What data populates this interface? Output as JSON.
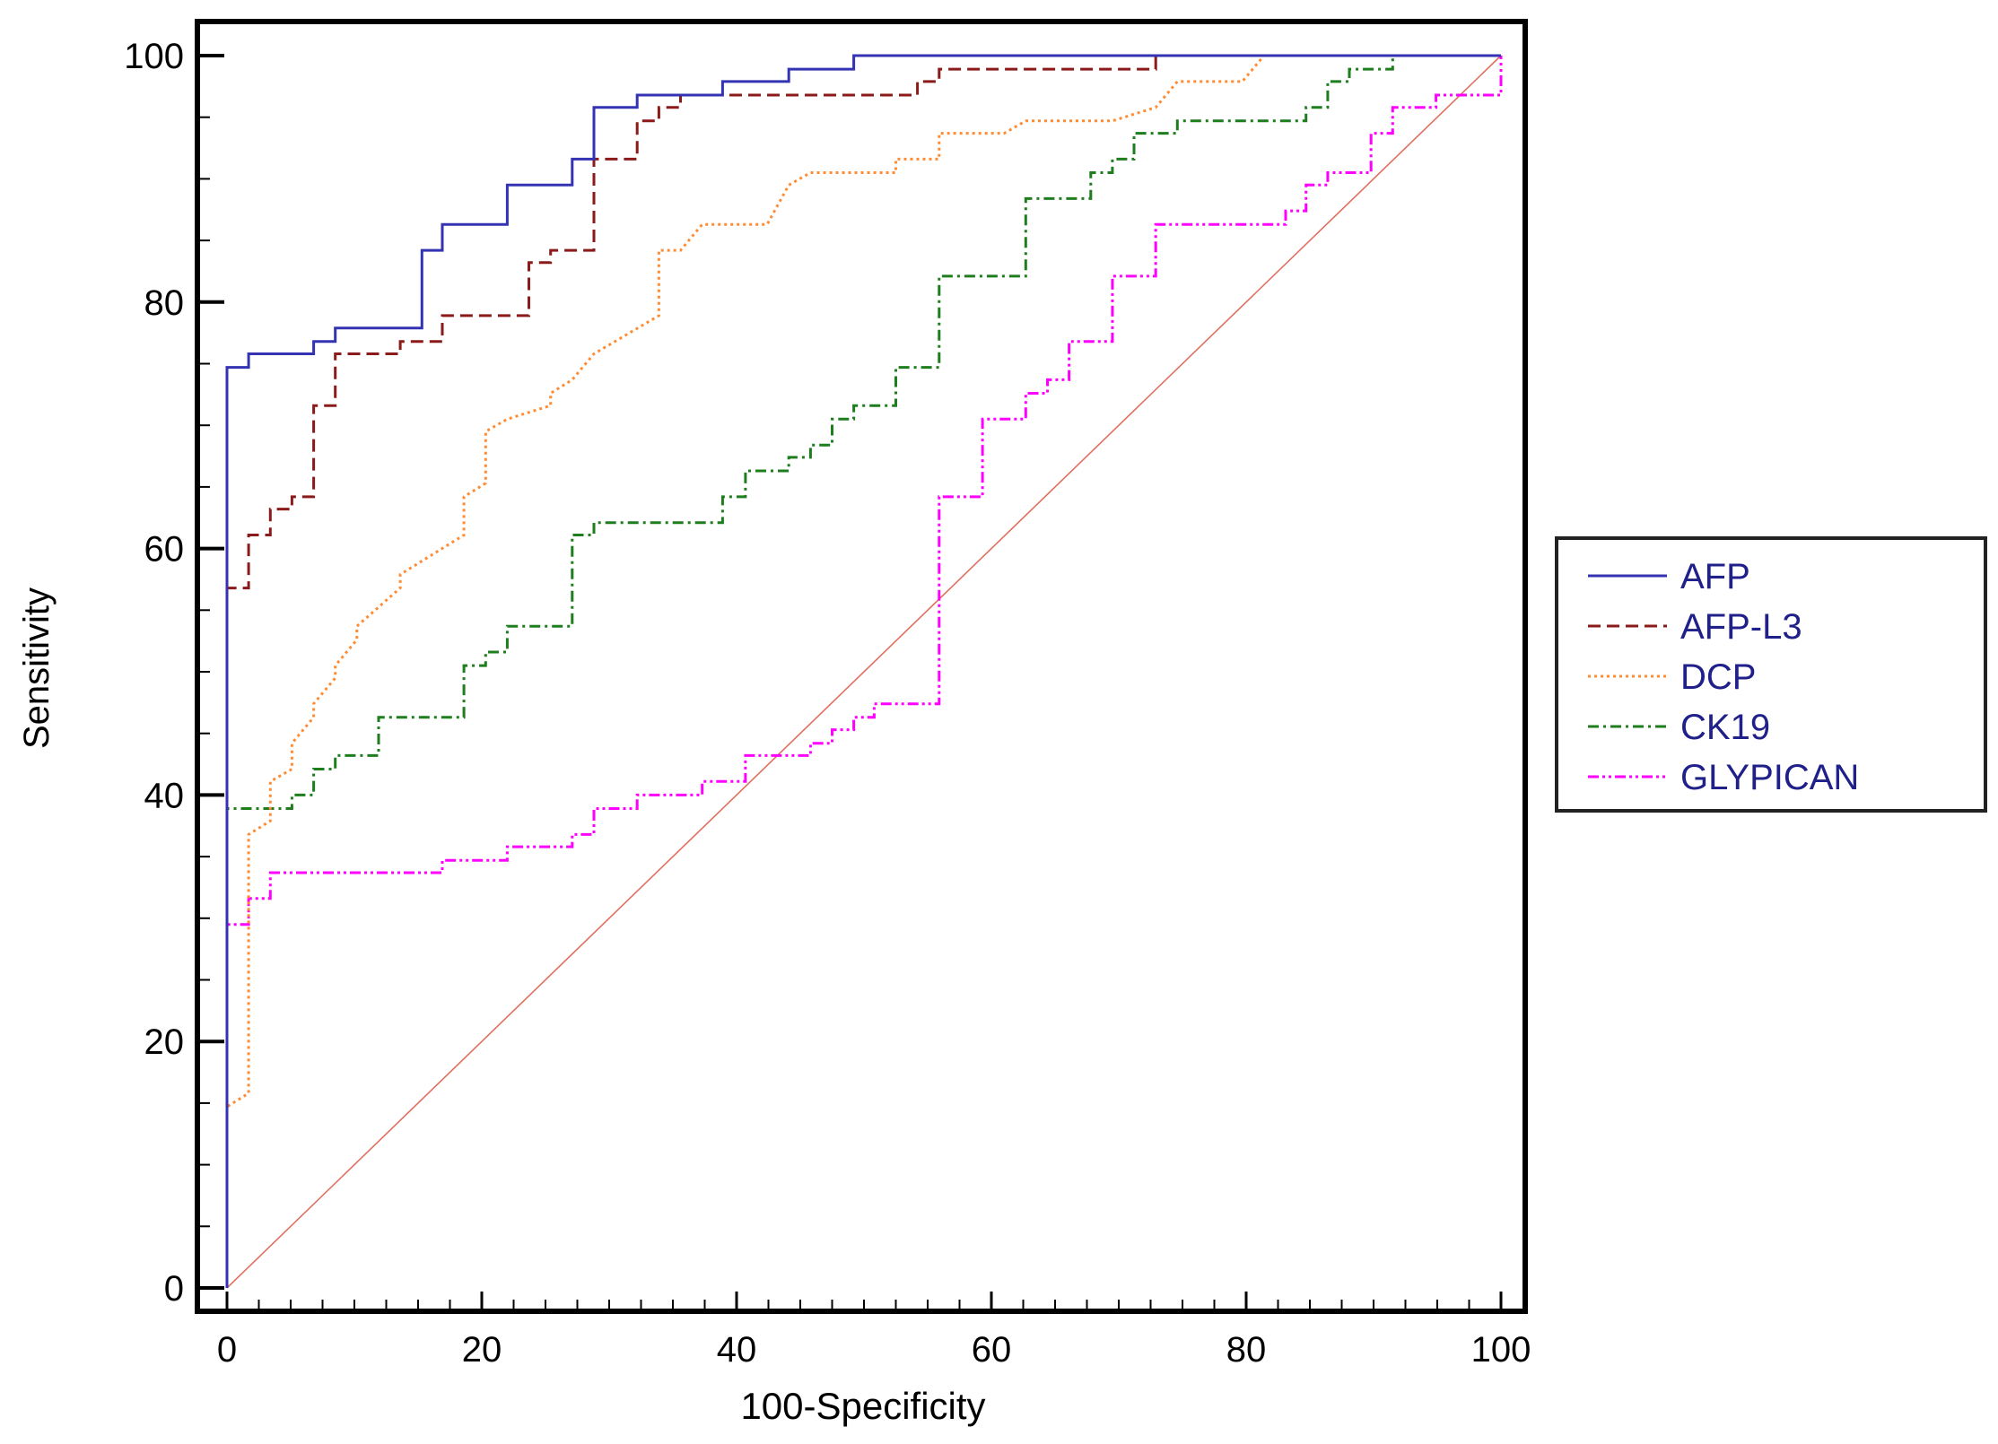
{
  "chart_data": {
    "type": "line",
    "title": "",
    "xlabel": "100-Specificity",
    "ylabel": "Sensitivity",
    "xlim": [
      0,
      100
    ],
    "ylim": [
      0,
      100
    ],
    "xticks": [
      0,
      20,
      40,
      60,
      80,
      100
    ],
    "yticks": [
      0,
      20,
      40,
      60,
      80,
      100
    ],
    "x_minor_step": 2.5,
    "y_minor_step": 5,
    "grid": false,
    "legend_position": "right",
    "reference_line": {
      "name": "chance",
      "points": [
        [
          0,
          0
        ],
        [
          100,
          100
        ]
      ],
      "color": "#e07060"
    },
    "series": [
      {
        "name": "AFP",
        "color": "#3333b3",
        "dash": "solid",
        "points": [
          [
            0,
            0
          ],
          [
            0,
            74.7
          ],
          [
            1.7,
            74.7
          ],
          [
            1.7,
            75.8
          ],
          [
            6.8,
            75.8
          ],
          [
            6.8,
            76.8
          ],
          [
            8.5,
            76.8
          ],
          [
            8.5,
            77.9
          ],
          [
            15.3,
            77.9
          ],
          [
            15.3,
            84.2
          ],
          [
            16.9,
            84.2
          ],
          [
            16.9,
            86.3
          ],
          [
            22,
            86.3
          ],
          [
            22,
            89.5
          ],
          [
            27.1,
            89.5
          ],
          [
            27.1,
            91.6
          ],
          [
            28.8,
            91.6
          ],
          [
            28.8,
            95.8
          ],
          [
            32.2,
            95.8
          ],
          [
            32.2,
            96.8
          ],
          [
            38.9,
            96.8
          ],
          [
            38.9,
            97.9
          ],
          [
            44.1,
            97.9
          ],
          [
            44.1,
            98.9
          ],
          [
            49.2,
            98.9
          ],
          [
            49.2,
            100
          ],
          [
            100,
            100
          ]
        ]
      },
      {
        "name": "AFP-L3",
        "color": "#8b1a1a",
        "dash": "dashed",
        "points": [
          [
            0,
            0
          ],
          [
            0,
            56.8
          ],
          [
            1.7,
            56.8
          ],
          [
            1.7,
            61.1
          ],
          [
            3.4,
            61.1
          ],
          [
            3.4,
            63.2
          ],
          [
            5.1,
            63.2
          ],
          [
            5.1,
            64.2
          ],
          [
            6.8,
            64.2
          ],
          [
            6.8,
            71.6
          ],
          [
            8.5,
            71.6
          ],
          [
            8.5,
            75.8
          ],
          [
            13.6,
            75.8
          ],
          [
            13.6,
            76.8
          ],
          [
            16.9,
            76.8
          ],
          [
            16.9,
            78.9
          ],
          [
            23.7,
            78.9
          ],
          [
            23.7,
            83.2
          ],
          [
            25.4,
            83.2
          ],
          [
            25.4,
            84.2
          ],
          [
            28.8,
            84.2
          ],
          [
            28.8,
            91.6
          ],
          [
            32.2,
            91.6
          ],
          [
            32.2,
            94.7
          ],
          [
            33.9,
            94.7
          ],
          [
            33.9,
            95.8
          ],
          [
            35.6,
            95.8
          ],
          [
            35.6,
            96.8
          ],
          [
            54.2,
            96.8
          ],
          [
            54.2,
            97.9
          ],
          [
            55.9,
            97.9
          ],
          [
            55.9,
            98.9
          ],
          [
            72.9,
            98.9
          ],
          [
            72.9,
            100
          ],
          [
            100,
            100
          ]
        ]
      },
      {
        "name": "DCP",
        "color": "#ff8c33",
        "dash": "dotted",
        "points": [
          [
            0,
            0
          ],
          [
            0,
            14.7
          ],
          [
            1.7,
            15.8
          ],
          [
            1.7,
            36.8
          ],
          [
            3.4,
            37.9
          ],
          [
            3.4,
            41.1
          ],
          [
            5.1,
            42.1
          ],
          [
            5.1,
            44.2
          ],
          [
            6.8,
            46.3
          ],
          [
            6.8,
            47.4
          ],
          [
            8.5,
            49.5
          ],
          [
            8.5,
            50.5
          ],
          [
            10.2,
            52.6
          ],
          [
            10.2,
            53.7
          ],
          [
            13.6,
            56.8
          ],
          [
            13.6,
            57.9
          ],
          [
            18.6,
            61.1
          ],
          [
            18.6,
            64.2
          ],
          [
            20.3,
            65.3
          ],
          [
            20.3,
            69.5
          ],
          [
            22,
            70.5
          ],
          [
            25.4,
            71.6
          ],
          [
            25.4,
            72.6
          ],
          [
            27.1,
            73.7
          ],
          [
            28.8,
            75.8
          ],
          [
            33.9,
            78.9
          ],
          [
            33.9,
            84.2
          ],
          [
            35.6,
            84.2
          ],
          [
            37.3,
            86.3
          ],
          [
            42.4,
            86.3
          ],
          [
            44.1,
            89.5
          ],
          [
            45.8,
            90.5
          ],
          [
            52.5,
            90.5
          ],
          [
            52.5,
            91.6
          ],
          [
            55.9,
            91.6
          ],
          [
            55.9,
            93.7
          ],
          [
            61,
            93.7
          ],
          [
            62.7,
            94.7
          ],
          [
            69.5,
            94.7
          ],
          [
            72.9,
            95.8
          ],
          [
            74.6,
            97.9
          ],
          [
            79.7,
            97.9
          ],
          [
            81.4,
            100
          ],
          [
            100,
            100
          ]
        ]
      },
      {
        "name": "CK19",
        "color": "#1e7e1e",
        "dash": "dashdot",
        "points": [
          [
            0,
            0
          ],
          [
            0,
            38.9
          ],
          [
            5.1,
            38.9
          ],
          [
            5.1,
            40
          ],
          [
            6.8,
            40
          ],
          [
            6.8,
            42.1
          ],
          [
            8.5,
            42.1
          ],
          [
            8.5,
            43.2
          ],
          [
            11.9,
            43.2
          ],
          [
            11.9,
            46.3
          ],
          [
            18.6,
            46.3
          ],
          [
            18.6,
            50.5
          ],
          [
            20.3,
            50.5
          ],
          [
            20.3,
            51.6
          ],
          [
            22,
            51.6
          ],
          [
            22,
            53.7
          ],
          [
            27.1,
            53.7
          ],
          [
            27.1,
            61.1
          ],
          [
            28.8,
            61.1
          ],
          [
            28.8,
            62.1
          ],
          [
            38.9,
            62.1
          ],
          [
            38.9,
            64.2
          ],
          [
            40.7,
            64.2
          ],
          [
            40.7,
            66.3
          ],
          [
            44.1,
            66.3
          ],
          [
            44.1,
            67.4
          ],
          [
            45.8,
            67.4
          ],
          [
            45.8,
            68.4
          ],
          [
            47.5,
            68.4
          ],
          [
            47.5,
            70.5
          ],
          [
            49.2,
            70.5
          ],
          [
            49.2,
            71.6
          ],
          [
            52.5,
            71.6
          ],
          [
            52.5,
            74.7
          ],
          [
            55.9,
            74.7
          ],
          [
            55.9,
            82.1
          ],
          [
            62.7,
            82.1
          ],
          [
            62.7,
            88.4
          ],
          [
            67.8,
            88.4
          ],
          [
            67.8,
            90.5
          ],
          [
            69.5,
            90.5
          ],
          [
            69.5,
            91.6
          ],
          [
            71.2,
            91.6
          ],
          [
            71.2,
            93.7
          ],
          [
            74.6,
            93.7
          ],
          [
            74.6,
            94.7
          ],
          [
            84.7,
            94.7
          ],
          [
            84.7,
            95.8
          ],
          [
            86.4,
            95.8
          ],
          [
            86.4,
            97.9
          ],
          [
            88.1,
            97.9
          ],
          [
            88.1,
            98.9
          ],
          [
            91.5,
            98.9
          ],
          [
            91.5,
            100
          ],
          [
            100,
            100
          ]
        ]
      },
      {
        "name": "GLYPICAN",
        "color": "#ff00ff",
        "dash": "dashdotdot",
        "points": [
          [
            0,
            0
          ],
          [
            0,
            29.5
          ],
          [
            1.7,
            29.5
          ],
          [
            1.7,
            31.6
          ],
          [
            3.4,
            31.6
          ],
          [
            3.4,
            33.7
          ],
          [
            16.9,
            33.7
          ],
          [
            16.9,
            34.7
          ],
          [
            22,
            34.7
          ],
          [
            22,
            35.8
          ],
          [
            27.1,
            35.8
          ],
          [
            27.1,
            36.8
          ],
          [
            28.8,
            36.8
          ],
          [
            28.8,
            38.9
          ],
          [
            32.2,
            38.9
          ],
          [
            32.2,
            40
          ],
          [
            37.3,
            40
          ],
          [
            37.3,
            41.1
          ],
          [
            40.7,
            41.1
          ],
          [
            40.7,
            43.2
          ],
          [
            45.8,
            43.2
          ],
          [
            45.8,
            44.2
          ],
          [
            47.5,
            44.2
          ],
          [
            47.5,
            45.3
          ],
          [
            49.2,
            45.3
          ],
          [
            49.2,
            46.3
          ],
          [
            50.8,
            46.3
          ],
          [
            50.8,
            47.4
          ],
          [
            55.9,
            47.4
          ],
          [
            55.9,
            64.2
          ],
          [
            59.3,
            64.2
          ],
          [
            59.3,
            70.5
          ],
          [
            62.7,
            70.5
          ],
          [
            62.7,
            72.6
          ],
          [
            64.4,
            72.6
          ],
          [
            64.4,
            73.7
          ],
          [
            66.1,
            73.7
          ],
          [
            66.1,
            76.8
          ],
          [
            69.5,
            76.8
          ],
          [
            69.5,
            82.1
          ],
          [
            72.9,
            82.1
          ],
          [
            72.9,
            86.3
          ],
          [
            83.1,
            86.3
          ],
          [
            83.1,
            87.4
          ],
          [
            84.7,
            87.4
          ],
          [
            84.7,
            89.5
          ],
          [
            86.4,
            89.5
          ],
          [
            86.4,
            90.5
          ],
          [
            89.8,
            90.5
          ],
          [
            89.8,
            93.7
          ],
          [
            91.5,
            93.7
          ],
          [
            91.5,
            95.8
          ],
          [
            94.9,
            95.8
          ],
          [
            94.9,
            96.8
          ],
          [
            100,
            96.8
          ],
          [
            100,
            100
          ]
        ]
      }
    ]
  }
}
